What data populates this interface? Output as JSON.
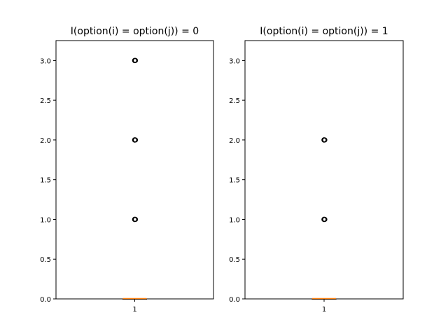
{
  "chart_data": [
    {
      "type": "boxplot",
      "title": "I(option(i) = option(j)) = 0",
      "categories": [
        "1"
      ],
      "ylim": [
        0,
        3.25
      ],
      "yticks": [
        "0.0",
        "0.5",
        "1.0",
        "1.5",
        "2.0",
        "2.5",
        "3.0"
      ],
      "box": {
        "q1": 0,
        "median": 0,
        "q3": 0,
        "whisker_low": 0,
        "whisker_high": 0
      },
      "outliers": [
        1,
        2,
        3
      ],
      "grid": false
    },
    {
      "type": "boxplot",
      "title": "I(option(i) = option(j)) = 1",
      "categories": [
        "1"
      ],
      "ylim": [
        0,
        3.25
      ],
      "yticks": [
        "0.0",
        "0.5",
        "1.0",
        "1.5",
        "2.0",
        "2.5",
        "3.0"
      ],
      "box": {
        "q1": 0,
        "median": 0,
        "q3": 0,
        "whisker_low": 0,
        "whisker_high": 0
      },
      "outliers": [
        1,
        2
      ],
      "grid": false
    }
  ],
  "colors": {
    "median": "#ff7f0e",
    "outlier_edge": "#000000",
    "frame": "#000000"
  }
}
